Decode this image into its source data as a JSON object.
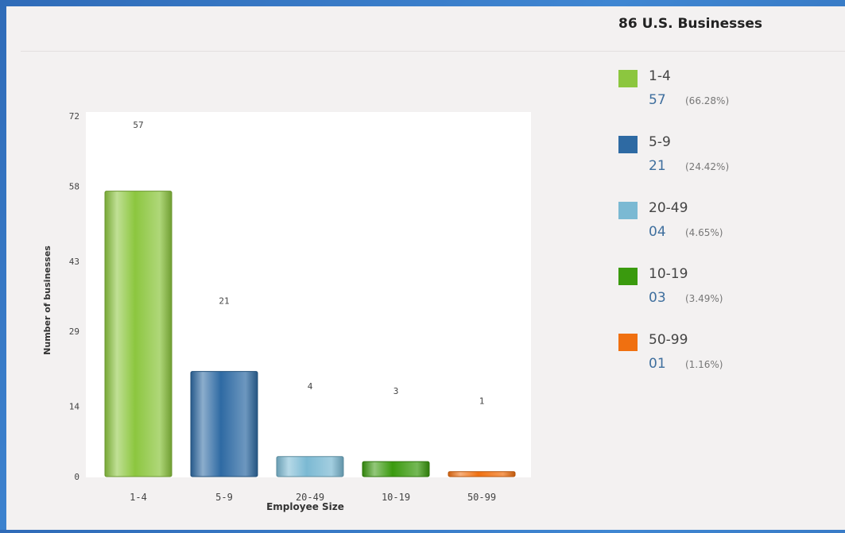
{
  "summary": {
    "title": "86 U.S. Businesses"
  },
  "legend": [
    {
      "label": "1-4",
      "count": "57",
      "percent": "(66.28%)",
      "color": "#8cc63f"
    },
    {
      "label": "5-9",
      "count": "21",
      "percent": "(24.42%)",
      "color": "#2e6aa3"
    },
    {
      "label": "20-49",
      "count": "04",
      "percent": "(4.65%)",
      "color": "#7bb9d3"
    },
    {
      "label": "10-19",
      "count": "03",
      "percent": "(3.49%)",
      "color": "#3a9a0e"
    },
    {
      "label": "50-99",
      "count": "01",
      "percent": "(1.16%)",
      "color": "#f07010"
    }
  ],
  "chart_data": {
    "type": "bar",
    "categories": [
      "1-4",
      "5-9",
      "20-49",
      "10-19",
      "50-99"
    ],
    "values": [
      57,
      21,
      4,
      3,
      1
    ],
    "value_labels": [
      "57",
      "21",
      "4",
      "3",
      "1"
    ],
    "colors": [
      "#8cc63f",
      "#2e6aa3",
      "#7bb9d3",
      "#3a9a0e",
      "#f07010"
    ],
    "xlabel": "Employee Size",
    "ylabel": "Number of businesses",
    "ylim": [
      0,
      72
    ],
    "yticks": [
      0,
      14,
      29,
      43,
      58,
      72
    ],
    "grid": false,
    "legend": "right"
  }
}
